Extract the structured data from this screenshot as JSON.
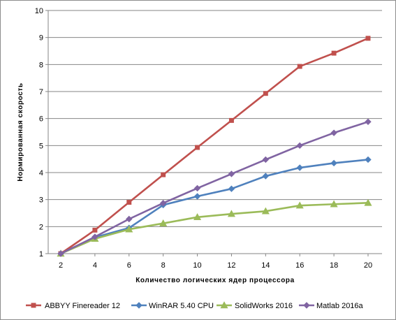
{
  "chart_data": {
    "type": "line",
    "title": "",
    "xlabel": "Количество  логических  ядер  процессора",
    "ylabel": "Нормированная  скорость",
    "x": [
      2,
      4,
      6,
      8,
      10,
      12,
      14,
      16,
      18,
      20
    ],
    "xlim": [
      2,
      20
    ],
    "ylim": [
      1,
      10
    ],
    "yticks": [
      1,
      2,
      3,
      4,
      5,
      6,
      7,
      8,
      9,
      10
    ],
    "grid": "horizontal",
    "legend": "bottom",
    "series": [
      {
        "name": "ABBYY Finereader 12",
        "color": "#c0504d",
        "marker": "square",
        "values": [
          1.0,
          1.87,
          2.9,
          3.92,
          4.93,
          5.93,
          6.93,
          7.93,
          8.42,
          8.97
        ]
      },
      {
        "name": "WinRAR 5.40 CPU",
        "color": "#4f81bd",
        "marker": "diamond",
        "values": [
          1.0,
          1.6,
          1.95,
          2.8,
          3.12,
          3.4,
          3.87,
          4.18,
          4.35,
          4.48
        ]
      },
      {
        "name": "SolidWorks 2016",
        "color": "#9bbb59",
        "marker": "triangle",
        "values": [
          1.0,
          1.55,
          1.9,
          2.12,
          2.35,
          2.47,
          2.57,
          2.78,
          2.83,
          2.88
        ]
      },
      {
        "name": "Matlab 2016a",
        "color": "#8064a2",
        "marker": "diamond",
        "values": [
          1.0,
          1.62,
          2.28,
          2.87,
          3.42,
          3.95,
          4.48,
          5.0,
          5.47,
          5.88
        ]
      }
    ]
  }
}
